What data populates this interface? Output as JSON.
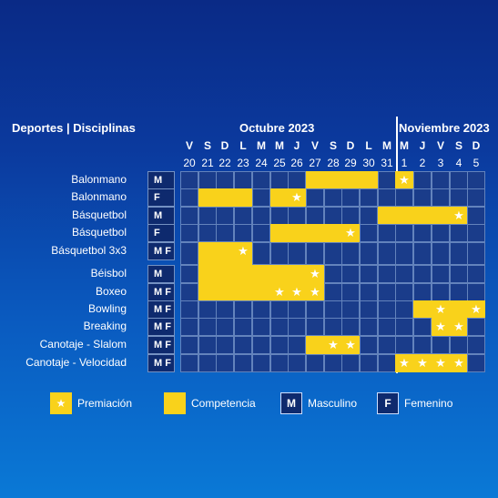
{
  "header": {
    "deportes": "Deportes | Disciplinas",
    "month1": "Octubre 2023",
    "month2": "Noviembre 2023"
  },
  "days": [
    {
      "dow": "V",
      "date": "20"
    },
    {
      "dow": "S",
      "date": "21"
    },
    {
      "dow": "D",
      "date": "22"
    },
    {
      "dow": "L",
      "date": "23"
    },
    {
      "dow": "M",
      "date": "24"
    },
    {
      "dow": "M",
      "date": "25"
    },
    {
      "dow": "J",
      "date": "26"
    },
    {
      "dow": "V",
      "date": "27"
    },
    {
      "dow": "S",
      "date": "28"
    },
    {
      "dow": "D",
      "date": "29"
    },
    {
      "dow": "L",
      "date": "30"
    },
    {
      "dow": "M",
      "date": "31"
    },
    {
      "dow": "M",
      "date": "1"
    },
    {
      "dow": "J",
      "date": "2"
    },
    {
      "dow": "V",
      "date": "3"
    },
    {
      "dow": "S",
      "date": "4"
    },
    {
      "dow": "D",
      "date": "5"
    }
  ],
  "sports": [
    {
      "name": "Balonmano",
      "gender": "M",
      "comp": [
        7,
        8,
        9,
        10,
        12
      ],
      "star": [
        12
      ]
    },
    {
      "name": "Balonmano",
      "gender": "F",
      "comp": [
        1,
        2,
        3,
        5,
        6
      ],
      "star": [
        6
      ]
    },
    {
      "name": "Básquetbol",
      "gender": "M",
      "comp": [
        11,
        12,
        13,
        14,
        15
      ],
      "star": [
        15
      ]
    },
    {
      "name": "Básquetbol",
      "gender": "F",
      "comp": [
        5,
        6,
        7,
        8,
        9
      ],
      "star": [
        9
      ]
    },
    {
      "name": "Básquetbol 3x3",
      "gender": "M F",
      "comp": [
        1,
        2,
        3
      ],
      "star": [
        3
      ]
    },
    {
      "name": "Béisbol",
      "gender": "M",
      "comp": [
        1,
        2,
        3,
        4,
        5,
        6,
        7
      ],
      "star": [
        7
      ]
    },
    {
      "name": "Boxeo",
      "gender": "M F",
      "comp": [
        1,
        2,
        3,
        4,
        5,
        6,
        7
      ],
      "star": [
        5,
        6,
        7
      ]
    },
    {
      "name": "Bowling",
      "gender": "M F",
      "comp": [
        13,
        14,
        15,
        16
      ],
      "star": [
        14,
        16
      ]
    },
    {
      "name": "Breaking",
      "gender": "M F",
      "comp": [
        14,
        15
      ],
      "star": [
        14,
        15
      ]
    },
    {
      "name": "Canotaje - Slalom",
      "gender": "M F",
      "comp": [
        7,
        8,
        9
      ],
      "star": [
        8,
        9
      ]
    },
    {
      "name": "Canotaje - Velocidad",
      "gender": "M F",
      "comp": [
        12,
        13,
        14,
        15
      ],
      "star": [
        12,
        13,
        14,
        15
      ]
    }
  ],
  "legend": {
    "premiacion": "Premiación",
    "competencia": "Competencia",
    "m_label": "M",
    "masculino": "Masculino",
    "f_label": "F",
    "femenino": "Femenino"
  },
  "colors": {
    "competencia": "#f9d21b",
    "cell": "#1a3c8a"
  }
}
